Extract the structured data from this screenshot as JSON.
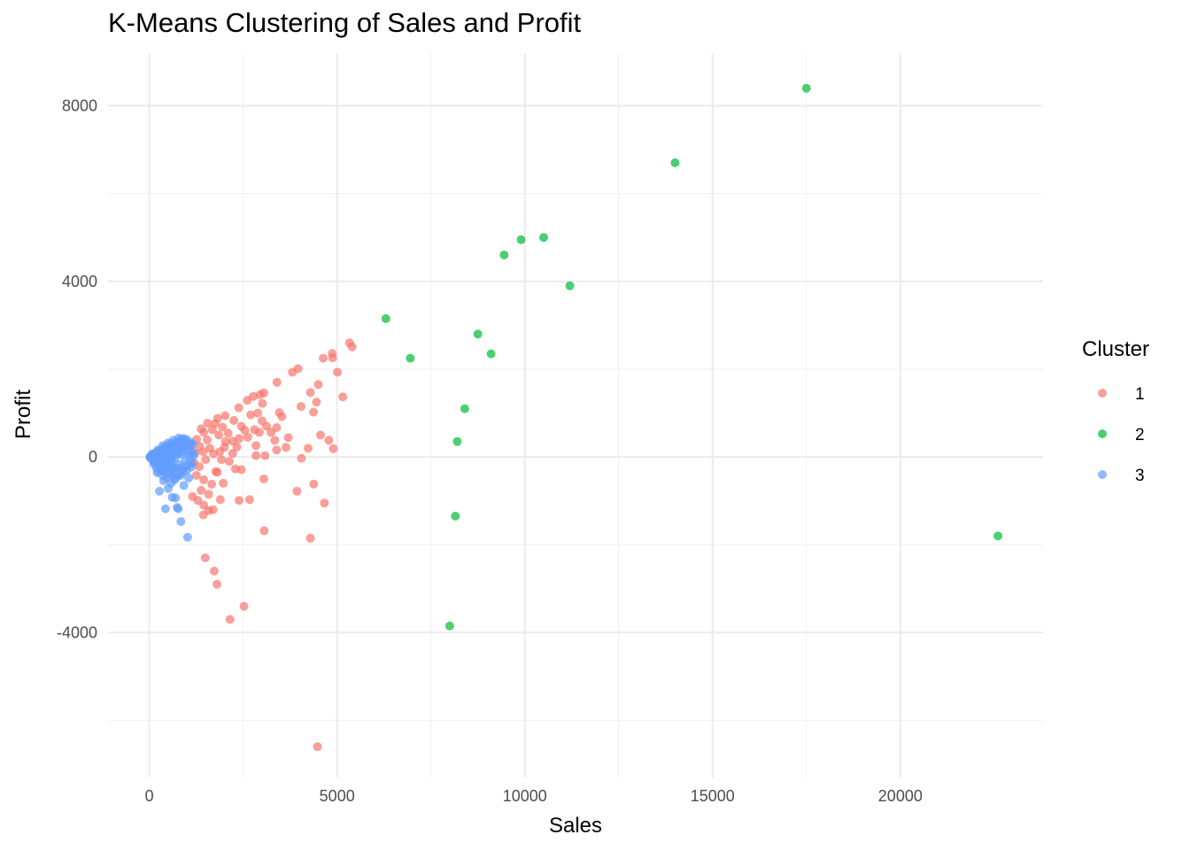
{
  "chart_data": {
    "type": "scatter",
    "title": "K-Means Clustering of Sales and Profit",
    "xlabel": "Sales",
    "ylabel": "Profit",
    "xlim": [
      -1100,
      23800
    ],
    "ylim": [
      -7300,
      9200
    ],
    "x_major_ticks": [
      0,
      5000,
      10000,
      15000,
      20000
    ],
    "x_tick_labels": [
      "0",
      "5000",
      "10000",
      "15000",
      "20000"
    ],
    "x_minor_ticks": [
      2500,
      7500,
      12500,
      17500
    ],
    "y_major_ticks": [
      -4000,
      0,
      4000,
      8000
    ],
    "y_tick_labels": [
      "-4000",
      "0",
      "4000",
      "8000"
    ],
    "y_minor_ticks": [
      -6000,
      -2000,
      2000,
      6000
    ],
    "grid": true,
    "legend": {
      "title": "Cluster",
      "position": "right"
    },
    "series": [
      {
        "name": "1",
        "color": "#F8766D",
        "points": [
          [
            4480,
            -6600
          ],
          [
            2150,
            -3700
          ],
          [
            2520,
            -3400
          ],
          [
            1800,
            -2900
          ],
          [
            1730,
            -2600
          ],
          [
            1490,
            -2300
          ],
          [
            3060,
            -1680
          ],
          [
            4290,
            -1850
          ],
          [
            4660,
            -1050
          ],
          [
            2670,
            -970
          ],
          [
            2390,
            -990
          ],
          [
            1890,
            -970
          ],
          [
            1440,
            -1320
          ],
          [
            1580,
            -1220
          ],
          [
            1450,
            -1100
          ],
          [
            1700,
            -1200
          ],
          [
            4380,
            -620
          ],
          [
            3050,
            -500
          ],
          [
            3930,
            -780
          ],
          [
            4050,
            -30
          ],
          [
            4230,
            200
          ],
          [
            4900,
            190
          ],
          [
            4780,
            380
          ],
          [
            4560,
            500
          ],
          [
            4370,
            1020
          ],
          [
            4450,
            1250
          ],
          [
            4040,
            1150
          ],
          [
            4290,
            1470
          ],
          [
            4500,
            1650
          ],
          [
            3400,
            1700
          ],
          [
            3810,
            1930
          ],
          [
            3960,
            2010
          ],
          [
            4630,
            2250
          ],
          [
            4870,
            2360
          ],
          [
            4880,
            2260
          ],
          [
            5330,
            2600
          ],
          [
            5400,
            2510
          ],
          [
            5010,
            1930
          ],
          [
            5150,
            1370
          ],
          [
            2950,
            1420
          ],
          [
            3050,
            1460
          ],
          [
            3010,
            1220
          ],
          [
            2770,
            1380
          ],
          [
            2380,
            1120
          ],
          [
            2610,
            1290
          ],
          [
            3530,
            920
          ],
          [
            3460,
            1010
          ],
          [
            3700,
            440
          ],
          [
            3390,
            670
          ],
          [
            3340,
            380
          ],
          [
            3640,
            220
          ],
          [
            3390,
            160
          ],
          [
            3080,
            30
          ],
          [
            2840,
            30
          ],
          [
            2840,
            260
          ],
          [
            2540,
            610
          ],
          [
            2330,
            230
          ],
          [
            2450,
            -290
          ],
          [
            2290,
            -270
          ],
          [
            2130,
            -100
          ],
          [
            1970,
            -600
          ],
          [
            1810,
            -350
          ],
          [
            1770,
            -330
          ],
          [
            1660,
            -620
          ],
          [
            1380,
            -760
          ],
          [
            1250,
            -420
          ],
          [
            1150,
            -900
          ],
          [
            1290,
            -990
          ],
          [
            1580,
            -850
          ],
          [
            1450,
            -520
          ],
          [
            1920,
            -60
          ],
          [
            2220,
            80
          ],
          [
            2030,
            350
          ],
          [
            1850,
            500
          ],
          [
            1750,
            760
          ],
          [
            1680,
            620
          ],
          [
            1540,
            390
          ],
          [
            1340,
            240
          ],
          [
            1220,
            90
          ],
          [
            1430,
            120
          ],
          [
            1610,
            200
          ],
          [
            1950,
            680
          ],
          [
            2100,
            540
          ],
          [
            2250,
            830
          ],
          [
            2450,
            700
          ],
          [
            2700,
            960
          ],
          [
            2890,
            1000
          ],
          [
            2620,
            450
          ],
          [
            2390,
            420
          ],
          [
            2220,
            360
          ],
          [
            2000,
            220
          ],
          [
            1880,
            120
          ],
          [
            1710,
            70
          ],
          [
            1500,
            -60
          ],
          [
            1330,
            -220
          ],
          [
            1190,
            -120
          ],
          [
            1260,
            400
          ],
          [
            1450,
            560
          ],
          [
            1550,
            770
          ],
          [
            1820,
            880
          ],
          [
            2020,
            940
          ],
          [
            3120,
            700
          ],
          [
            3240,
            560
          ],
          [
            2930,
            560
          ],
          [
            3000,
            820
          ],
          [
            2800,
            620
          ],
          [
            1100,
            260
          ],
          [
            1380,
            640
          ]
        ]
      },
      {
        "name": "2",
        "color": "#00BA38",
        "points": [
          [
            17500,
            8400
          ],
          [
            14000,
            6700
          ],
          [
            10500,
            5000
          ],
          [
            9900,
            4950
          ],
          [
            9450,
            4600
          ],
          [
            11200,
            3900
          ],
          [
            6300,
            3150
          ],
          [
            8750,
            2800
          ],
          [
            6950,
            2250
          ],
          [
            9100,
            2350
          ],
          [
            8400,
            1100
          ],
          [
            8200,
            350
          ],
          [
            8150,
            -1350
          ],
          [
            22600,
            -1800
          ],
          [
            8000,
            -3850
          ]
        ]
      },
      {
        "name": "3",
        "color": "#619CFF",
        "points": [
          [
            1020,
            -1830
          ],
          [
            840,
            -1470
          ],
          [
            430,
            -1180
          ],
          [
            740,
            -1150
          ],
          [
            770,
            -1180
          ],
          [
            610,
            -920
          ],
          [
            700,
            -930
          ],
          [
            270,
            -780
          ],
          [
            500,
            -720
          ],
          [
            920,
            -650
          ],
          [
            580,
            -600
          ],
          [
            380,
            -540
          ],
          [
            1050,
            -480
          ],
          [
            840,
            -420
          ],
          [
            210,
            -360
          ],
          [
            660,
            -300
          ],
          [
            1120,
            -230
          ],
          [
            450,
            -250
          ],
          [
            300,
            -200
          ],
          [
            130,
            -120
          ],
          [
            560,
            -130
          ],
          [
            780,
            -170
          ],
          [
            950,
            -90
          ],
          [
            60,
            -40
          ],
          [
            240,
            -30
          ],
          [
            400,
            10
          ],
          [
            620,
            30
          ],
          [
            880,
            60
          ],
          [
            1150,
            120
          ],
          [
            1060,
            250
          ],
          [
            860,
            330
          ],
          [
            720,
            290
          ],
          [
            560,
            230
          ],
          [
            420,
            180
          ],
          [
            300,
            120
          ],
          [
            180,
            70
          ],
          [
            90,
            20
          ],
          [
            20,
            0
          ],
          [
            40,
            -10
          ],
          [
            110,
            40
          ],
          [
            170,
            10
          ],
          [
            250,
            60
          ],
          [
            330,
            80
          ],
          [
            470,
            90
          ],
          [
            520,
            150
          ],
          [
            650,
            170
          ],
          [
            760,
            210
          ],
          [
            920,
            180
          ],
          [
            1010,
            130
          ],
          [
            980,
            330
          ],
          [
            870,
            410
          ],
          [
            780,
            360
          ],
          [
            690,
            330
          ],
          [
            610,
            300
          ],
          [
            540,
            270
          ],
          [
            470,
            240
          ],
          [
            380,
            210
          ],
          [
            290,
            160
          ],
          [
            210,
            110
          ],
          [
            150,
            80
          ],
          [
            70,
            40
          ],
          [
            30,
            -20
          ],
          [
            100,
            -60
          ],
          [
            180,
            -80
          ],
          [
            260,
            -110
          ],
          [
            350,
            -140
          ],
          [
            430,
            -170
          ],
          [
            520,
            -200
          ],
          [
            610,
            -220
          ],
          [
            700,
            -240
          ],
          [
            800,
            -270
          ],
          [
            900,
            -250
          ],
          [
            1000,
            -300
          ],
          [
            1090,
            -60
          ],
          [
            1180,
            40
          ],
          [
            1130,
            -150
          ],
          [
            950,
            260
          ],
          [
            830,
            230
          ],
          [
            730,
            120
          ],
          [
            640,
            80
          ],
          [
            560,
            50
          ],
          [
            480,
            20
          ],
          [
            400,
            -20
          ],
          [
            320,
            -50
          ],
          [
            240,
            -80
          ],
          [
            160,
            -100
          ],
          [
            120,
            -150
          ],
          [
            200,
            -200
          ],
          [
            280,
            -260
          ],
          [
            360,
            -310
          ],
          [
            450,
            -360
          ],
          [
            540,
            -400
          ],
          [
            630,
            -440
          ],
          [
            720,
            -460
          ],
          [
            810,
            -380
          ],
          [
            900,
            -340
          ],
          [
            990,
            -200
          ],
          [
            1070,
            50
          ],
          [
            1000,
            390
          ],
          [
            930,
            420
          ],
          [
            840,
            110
          ],
          [
            760,
            60
          ],
          [
            680,
            -20
          ],
          [
            590,
            -60
          ],
          [
            510,
            -90
          ],
          [
            420,
            -120
          ],
          [
            340,
            30
          ],
          [
            260,
            10
          ],
          [
            190,
            -10
          ],
          [
            140,
            30
          ],
          [
            80,
            70
          ],
          [
            50,
            10
          ],
          [
            15,
            -5
          ],
          [
            220,
            160
          ],
          [
            360,
            260
          ],
          [
            500,
            320
          ],
          [
            640,
            380
          ],
          [
            780,
            430
          ],
          [
            350,
            -420
          ],
          [
            250,
            -330
          ],
          [
            180,
            -250
          ],
          [
            580,
            -300
          ],
          [
            680,
            -520
          ],
          [
            470,
            -480
          ],
          [
            1100,
            330
          ],
          [
            1160,
            290
          ]
        ]
      }
    ]
  }
}
